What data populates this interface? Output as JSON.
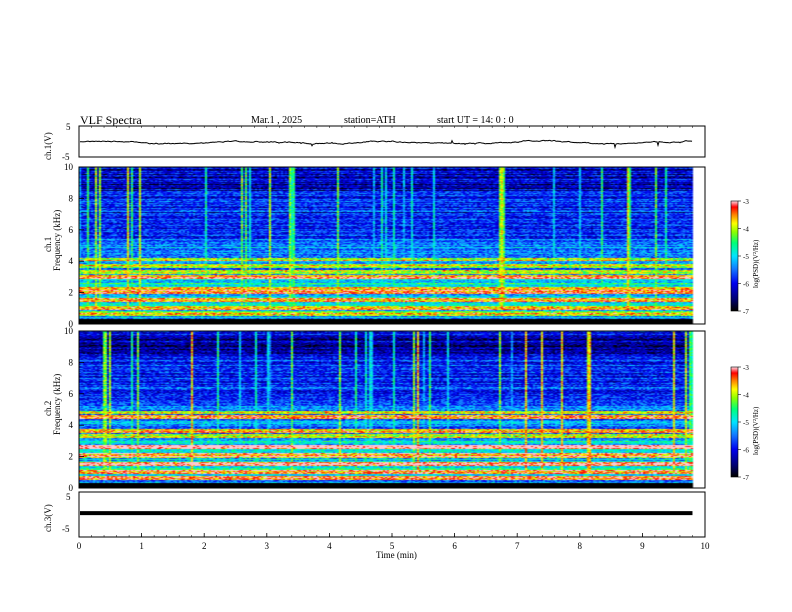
{
  "header": {
    "title": "VLF  Spectra",
    "date": "Mar.1  , 2025",
    "station": "station=ATH",
    "start": "start  UT  =    14: 0   : 0"
  },
  "colors": {
    "spectrum_scale": [
      "#000000",
      "#00008b",
      "#0000ff",
      "#1e90ff",
      "#00e5ff",
      "#00ff7f",
      "#7cfc00",
      "#ffff00",
      "#ff8c00",
      "#ff0000",
      "#ffc0cb",
      "#ffffff"
    ],
    "trace": "#000000"
  },
  "chart_data": [
    {
      "type": "line",
      "name": "ch1-waveform",
      "ylabel": "ch.1(V)",
      "yticks": [
        "5",
        "-5"
      ],
      "ylim": [
        -5,
        5
      ],
      "xlim": [
        0,
        10
      ],
      "description_level": 0.3
    },
    {
      "type": "heatmap",
      "name": "ch1-spectrogram",
      "ylabel": "ch.1\nFrequency  (kHz)",
      "ylabel_lines": [
        "ch.1",
        "Frequency  (kHz)"
      ],
      "yticks": [
        "10",
        "8",
        "6",
        "4",
        "2",
        "0"
      ],
      "ylim": [
        0,
        10
      ],
      "xlim": [
        0,
        10
      ],
      "colorbar": {
        "label": "log(PSD)(V²/Hz)",
        "ticks": [
          "-3",
          "-4",
          "-5",
          "-6",
          "-7"
        ],
        "range": [
          -7,
          -3
        ]
      },
      "bands_khz": [
        0.6,
        1.0,
        1.5,
        2.0,
        2.2,
        3.0,
        3.3,
        3.7,
        4.1
      ],
      "data_end_min": 9.8
    },
    {
      "type": "heatmap",
      "name": "ch2-spectrogram",
      "ylabel_lines": [
        "ch.2",
        "Frequency  (kHz)"
      ],
      "yticks": [
        "10",
        "8",
        "6",
        "4",
        "2",
        "0"
      ],
      "ylim": [
        0,
        10
      ],
      "xlim": [
        0,
        10
      ],
      "colorbar": {
        "label": "log(PSD)(V²/Hz)",
        "ticks": [
          "-3",
          "-4",
          "-5",
          "-6",
          "-7"
        ],
        "range": [
          -7,
          -3
        ]
      },
      "bands_khz": [
        0.6,
        1.0,
        1.5,
        2.0,
        2.1,
        2.6,
        3.3,
        3.6,
        4.5,
        4.8
      ],
      "data_end_min": 9.8
    },
    {
      "type": "line",
      "name": "ch3-waveform",
      "ylabel": "ch.3(V)",
      "yticks": [
        "5",
        "-5"
      ],
      "ylim": [
        -5,
        5
      ],
      "xlim": [
        0,
        10
      ],
      "level": 0.3,
      "xlabel": "Time  (min)",
      "xticks": [
        "0",
        "1",
        "2",
        "3",
        "4",
        "5",
        "6",
        "7",
        "8",
        "9",
        "10"
      ]
    }
  ]
}
